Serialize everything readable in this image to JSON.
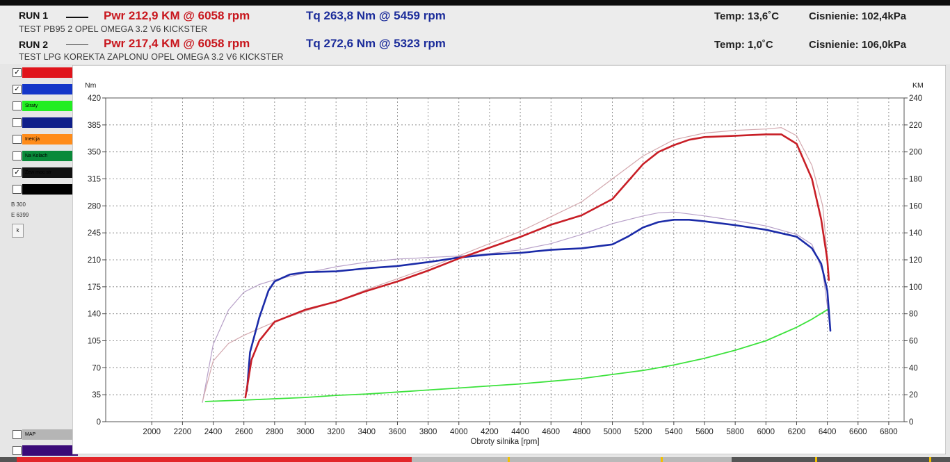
{
  "runs": [
    {
      "label": "RUN 1",
      "pwr": "Pwr  212,9 KM @ 6058 rpm",
      "tq": "Tq 263,8 Nm @ 5459 rpm",
      "desc": "TEST PB95 2 OPEL OMEGA 3.2 V6 KICKSTER",
      "temp": "Temp: 13,6˚C",
      "press": "Cisnienie: 102,4kPa"
    },
    {
      "label": "RUN 2",
      "pwr": "Pwr  217,4 KM @ 6058 rpm",
      "tq": "Tq 272,6 Nm @ 5323 rpm",
      "desc": "TEST LPG KOREKTA ZAPLONU OPEL OMEGA 3.2 V6 KICKSTER",
      "temp": "Temp: 1,0˚C",
      "press": "Cisnienie: 106,0kPa"
    }
  ],
  "legend": [
    {
      "label": "",
      "checked": true,
      "color": "#e0141b"
    },
    {
      "label": "",
      "checked": true,
      "color": "#1436c8"
    },
    {
      "label": "Straty",
      "checked": false,
      "color": "#22ee22"
    },
    {
      "label": "",
      "checked": false,
      "color": "#0f1f8a"
    },
    {
      "label": "Inercja",
      "checked": false,
      "color": "#ff8c1a"
    },
    {
      "label": "Na Kolach",
      "checked": false,
      "color": "#0a8a3a"
    },
    {
      "label": "Zew moc str",
      "checked": true,
      "color": "#111111"
    },
    {
      "label": "",
      "checked": false,
      "color": "#000000"
    }
  ],
  "info": {
    "b": "B 300",
    "e": "E 6399",
    "btn": "k"
  },
  "bottom_legend": [
    {
      "label": "MAP",
      "checked": false,
      "color": "#b5b5b5"
    },
    {
      "label": "",
      "checked": false,
      "color": "#3a0a78"
    }
  ],
  "chart_data": {
    "type": "line",
    "xlabel": "Obroty silnika [rpm]",
    "ylabel_left": "Nm",
    "ylabel_right": "KM",
    "xlim": [
      1700,
      6900
    ],
    "ylim_left": [
      0,
      420
    ],
    "ylim_right": [
      0,
      240
    ],
    "x_ticks": [
      2000,
      2200,
      2400,
      2600,
      2800,
      3000,
      3200,
      3400,
      3600,
      3800,
      4000,
      4200,
      4400,
      4600,
      4800,
      5000,
      5200,
      5400,
      5600,
      5800,
      6000,
      6200,
      6400,
      6600,
      6800
    ],
    "y_ticks_left": [
      0,
      35,
      70,
      105,
      140,
      175,
      210,
      245,
      280,
      315,
      350,
      385,
      420
    ],
    "y_ticks_right": [
      0,
      20,
      40,
      60,
      80,
      100,
      120,
      140,
      160,
      180,
      200,
      220,
      240
    ],
    "grid": true,
    "series": [
      {
        "color": "#b7a0c8",
        "axis": "left",
        "width": 1.2,
        "points": [
          [
            2330,
            25
          ],
          [
            2400,
            100
          ],
          [
            2500,
            145
          ],
          [
            2600,
            168
          ],
          [
            2700,
            178
          ],
          [
            2800,
            184
          ],
          [
            3000,
            193
          ],
          [
            3200,
            201
          ],
          [
            3400,
            207
          ],
          [
            3600,
            211
          ],
          [
            3800,
            213
          ],
          [
            4000,
            215
          ],
          [
            4200,
            218
          ],
          [
            4400,
            223
          ],
          [
            4600,
            231
          ],
          [
            4800,
            243
          ],
          [
            5000,
            257
          ],
          [
            5200,
            267
          ],
          [
            5300,
            271
          ],
          [
            5400,
            272
          ],
          [
            5600,
            267
          ],
          [
            5800,
            261
          ],
          [
            6000,
            254
          ],
          [
            6200,
            243
          ],
          [
            6300,
            230
          ],
          [
            6370,
            195
          ],
          [
            6400,
            150
          ],
          [
            6420,
            118
          ]
        ]
      },
      {
        "color": "#d3a8ae",
        "axis": "right",
        "width": 1.2,
        "points": [
          [
            2330,
            15
          ],
          [
            2400,
            45
          ],
          [
            2500,
            58
          ],
          [
            2600,
            64
          ],
          [
            2800,
            74
          ],
          [
            3000,
            82
          ],
          [
            3200,
            89
          ],
          [
            3400,
            98
          ],
          [
            3600,
            106
          ],
          [
            3800,
            114
          ],
          [
            4000,
            123
          ],
          [
            4200,
            132
          ],
          [
            4400,
            141
          ],
          [
            4600,
            152
          ],
          [
            4800,
            163
          ],
          [
            5000,
            180
          ],
          [
            5200,
            197
          ],
          [
            5400,
            209
          ],
          [
            5600,
            214
          ],
          [
            5800,
            216
          ],
          [
            6000,
            217
          ],
          [
            6100,
            218
          ],
          [
            6200,
            212
          ],
          [
            6300,
            190
          ],
          [
            6370,
            160
          ],
          [
            6410,
            110
          ]
        ]
      },
      {
        "color": "#1b2ba8",
        "axis": "left",
        "width": 2.6,
        "points": [
          [
            2620,
            40
          ],
          [
            2640,
            90
          ],
          [
            2700,
            135
          ],
          [
            2760,
            170
          ],
          [
            2800,
            182
          ],
          [
            2900,
            191
          ],
          [
            3000,
            194
          ],
          [
            3200,
            195
          ],
          [
            3400,
            199
          ],
          [
            3600,
            202
          ],
          [
            3800,
            207
          ],
          [
            4000,
            213
          ],
          [
            4200,
            217
          ],
          [
            4400,
            219
          ],
          [
            4600,
            223
          ],
          [
            4800,
            225
          ],
          [
            5000,
            230
          ],
          [
            5100,
            240
          ],
          [
            5200,
            252
          ],
          [
            5300,
            259
          ],
          [
            5400,
            262
          ],
          [
            5500,
            262
          ],
          [
            5600,
            260
          ],
          [
            5800,
            255
          ],
          [
            6000,
            249
          ],
          [
            6200,
            240
          ],
          [
            6300,
            225
          ],
          [
            6360,
            205
          ],
          [
            6400,
            170
          ],
          [
            6420,
            118
          ]
        ]
      },
      {
        "color": "#c81e26",
        "axis": "right",
        "width": 2.6,
        "points": [
          [
            2610,
            18
          ],
          [
            2650,
            46
          ],
          [
            2700,
            60
          ],
          [
            2800,
            74
          ],
          [
            3000,
            83
          ],
          [
            3200,
            89
          ],
          [
            3400,
            97
          ],
          [
            3600,
            104
          ],
          [
            3800,
            112
          ],
          [
            4000,
            121
          ],
          [
            4200,
            129
          ],
          [
            4400,
            137
          ],
          [
            4600,
            146
          ],
          [
            4800,
            153
          ],
          [
            5000,
            165
          ],
          [
            5100,
            178
          ],
          [
            5200,
            191
          ],
          [
            5300,
            200
          ],
          [
            5400,
            205
          ],
          [
            5500,
            209
          ],
          [
            5600,
            211
          ],
          [
            5800,
            212
          ],
          [
            6000,
            213
          ],
          [
            6100,
            213
          ],
          [
            6200,
            206
          ],
          [
            6300,
            180
          ],
          [
            6360,
            150
          ],
          [
            6400,
            120
          ],
          [
            6410,
            105
          ]
        ]
      },
      {
        "color": "#3ce23c",
        "axis": "right",
        "width": 1.8,
        "points": [
          [
            2350,
            15
          ],
          [
            2600,
            16
          ],
          [
            2800,
            17
          ],
          [
            3000,
            18
          ],
          [
            3200,
            19.5
          ],
          [
            3400,
            20.5
          ],
          [
            3600,
            22
          ],
          [
            3800,
            23.5
          ],
          [
            4000,
            25
          ],
          [
            4200,
            26.5
          ],
          [
            4400,
            28
          ],
          [
            4600,
            30
          ],
          [
            4800,
            32
          ],
          [
            5000,
            35
          ],
          [
            5200,
            38
          ],
          [
            5400,
            42
          ],
          [
            5600,
            47
          ],
          [
            5800,
            53
          ],
          [
            6000,
            60
          ],
          [
            6200,
            70
          ],
          [
            6300,
            76
          ],
          [
            6400,
            83
          ]
        ]
      }
    ]
  }
}
